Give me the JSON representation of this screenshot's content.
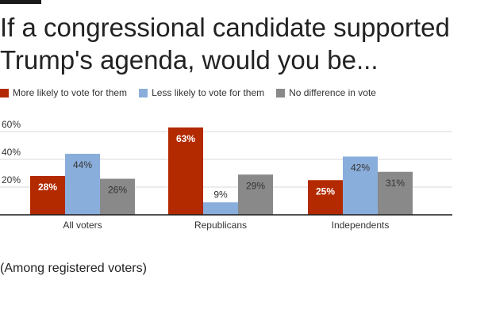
{
  "chart_data": {
    "type": "bar",
    "title": "If a congressional candidate supported Trump's agenda, would you be...",
    "categories": [
      "All voters",
      "Republicans",
      "Independents"
    ],
    "series": [
      {
        "name": "More likely to vote for them",
        "color": "#b32a00",
        "values": [
          28,
          63,
          25
        ],
        "labels": [
          "28%",
          "63%",
          "25%"
        ]
      },
      {
        "name": "Less likely to vote for them",
        "color": "#8aaedb",
        "values": [
          44,
          9,
          42
        ],
        "labels": [
          "44%",
          "9%",
          "42%"
        ]
      },
      {
        "name": "No difference in vote",
        "color": "#898989",
        "values": [
          26,
          29,
          31
        ],
        "labels": [
          "26%",
          "29%",
          "31%"
        ]
      }
    ],
    "yticks": [
      {
        "value": 20,
        "label": "20%"
      },
      {
        "value": 40,
        "label": "40%"
      },
      {
        "value": 60,
        "label": "60%"
      }
    ],
    "ylim": [
      0,
      66
    ],
    "grid": true,
    "legend_position": "top-left",
    "xlabel": "",
    "ylabel": ""
  },
  "note": "(Among registered voters)"
}
